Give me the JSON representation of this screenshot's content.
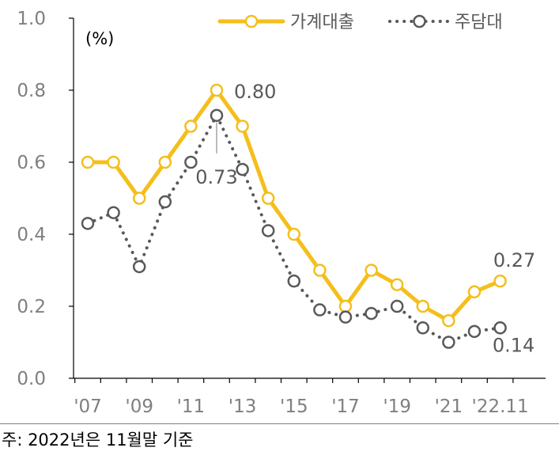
{
  "chart_data": {
    "type": "line",
    "title": "",
    "unit_label": "(%)",
    "xlabel": "",
    "ylabel": "",
    "ylim": [
      0.0,
      1.0
    ],
    "yticks": [
      "0.0",
      "0.2",
      "0.4",
      "0.6",
      "0.8",
      "1.0"
    ],
    "categories": [
      "2007",
      "2008",
      "2009",
      "2010",
      "2011",
      "2012",
      "2013",
      "2014",
      "2015",
      "2016",
      "2017",
      "2018",
      "2019",
      "2020",
      "2021",
      "2022",
      "2022.11"
    ],
    "xtick_labels": [
      {
        "index": 0,
        "label": "'07"
      },
      {
        "index": 2,
        "label": "'09"
      },
      {
        "index": 4,
        "label": "'11"
      },
      {
        "index": 6,
        "label": "'13"
      },
      {
        "index": 8,
        "label": "'15"
      },
      {
        "index": 10,
        "label": "'17"
      },
      {
        "index": 12,
        "label": "'19"
      },
      {
        "index": 14,
        "label": "'21"
      },
      {
        "index": 16,
        "label": "'22.11"
      }
    ],
    "series": [
      {
        "name": "가계대출",
        "color": "#f5be1b",
        "style": "solid",
        "values": [
          0.6,
          0.6,
          0.5,
          0.6,
          0.7,
          0.8,
          0.7,
          0.5,
          0.4,
          0.3,
          0.2,
          0.3,
          0.26,
          0.2,
          0.16,
          0.24,
          0.27
        ]
      },
      {
        "name": "주담대",
        "color": "#595959",
        "style": "dotted",
        "values": [
          0.43,
          0.46,
          0.31,
          0.49,
          0.6,
          0.73,
          0.58,
          0.41,
          0.27,
          0.19,
          0.17,
          0.18,
          0.2,
          0.14,
          0.1,
          0.13,
          0.14
        ]
      }
    ],
    "annotations": [
      {
        "series": 0,
        "index": 5,
        "text": "0.80"
      },
      {
        "series": 1,
        "index": 5,
        "text": "0.73"
      },
      {
        "series": 0,
        "index": 16,
        "text": "0.27"
      },
      {
        "series": 1,
        "index": 16,
        "text": "0.14"
      }
    ],
    "legend_position": "top"
  },
  "footnote": "주: 2022년은 11월말 기준"
}
